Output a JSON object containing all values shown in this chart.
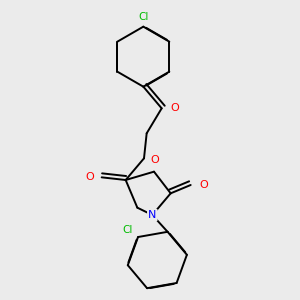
{
  "bg_color": "#ebebeb",
  "bond_color": "#000000",
  "bond_lw": 1.4,
  "atom_colors": {
    "O": "#ff0000",
    "N": "#0000ff",
    "Cl": "#00bb00",
    "C": "#000000"
  },
  "font_size": 7.5,
  "figsize": [
    3.0,
    3.0
  ],
  "dpi": 100
}
